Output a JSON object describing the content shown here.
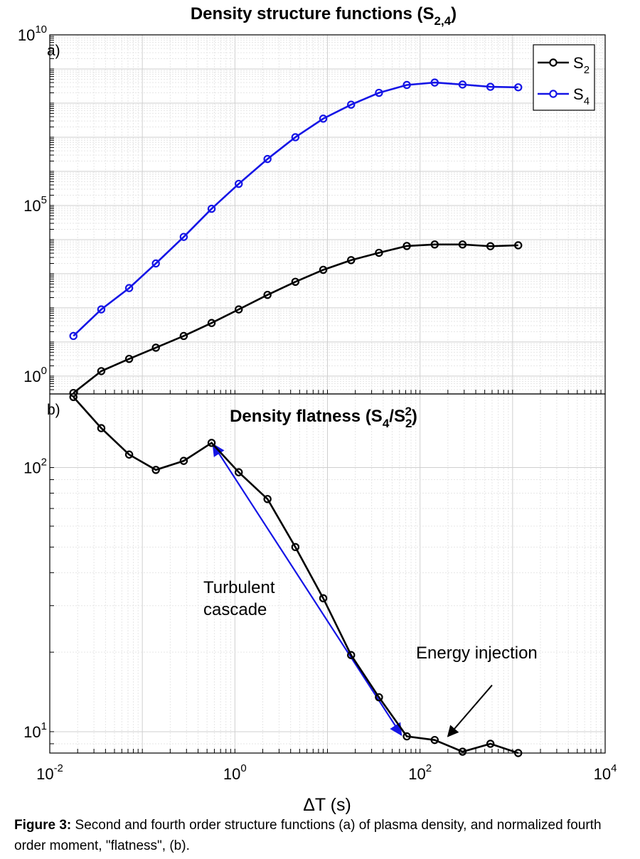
{
  "figure": {
    "caption_label": "Figure 3:",
    "caption_text": "Second and fourth order structure functions (a) of plasma density, and normalized fourth order moment, \"flatness\", (b)."
  },
  "chart_data": [
    {
      "type": "line",
      "panel_label": "a)",
      "title_parts": {
        "main": "Density structure functions (S",
        "sub": "2,4",
        "end": ")"
      },
      "xlabel": "ΔT (s)",
      "ylabel": "",
      "xscale": "log",
      "yscale": "log",
      "xlim": [
        0.01,
        10000
      ],
      "ylim": [
        0.3,
        10000000000
      ],
      "yticks": [
        {
          "base": "10",
          "exp": "10"
        },
        {
          "base": "10",
          "exp": "5"
        },
        {
          "base": "10",
          "exp": "0"
        }
      ],
      "xticks": [],
      "grid": true,
      "legend_position": "top-right",
      "series": [
        {
          "name": "S",
          "name_sub": "2",
          "color": "#000000",
          "x": [
            0.018,
            0.036,
            0.072,
            0.14,
            0.28,
            0.56,
            1.1,
            2.25,
            4.5,
            9,
            18,
            36,
            72,
            144,
            288,
            576,
            1150
          ],
          "y": [
            0.32,
            1.4,
            3.2,
            6.8,
            15,
            36,
            90,
            240,
            580,
            1300,
            2500,
            4100,
            6500,
            7200,
            7200,
            6400,
            6800
          ]
        },
        {
          "name": "S",
          "name_sub": "4",
          "color": "#1515e6",
          "x": [
            0.018,
            0.036,
            0.072,
            0.14,
            0.28,
            0.56,
            1.1,
            2.25,
            4.5,
            9,
            18,
            36,
            72,
            144,
            288,
            576,
            1150
          ],
          "y": [
            15,
            90,
            380,
            2000,
            12000,
            80000,
            430000,
            2300000,
            10000000,
            35000000,
            90000000,
            200000000,
            340000000,
            400000000,
            350000000,
            300000000,
            290000000
          ]
        }
      ]
    },
    {
      "type": "line",
      "panel_label": "b)",
      "title_parts": {
        "main": "Density flatness (S",
        "sub1": "4",
        "mid": "/S",
        "sub2": "2",
        "sup2": "2",
        "end": ")"
      },
      "xlabel": "ΔT (s)",
      "ylabel": "",
      "xscale": "log",
      "yscale": "log",
      "xlim": [
        0.01,
        10000
      ],
      "ylim": [
        8.3,
        190
      ],
      "yticks": [
        {
          "base": "10",
          "exp": "2"
        },
        {
          "base": "10",
          "exp": "1"
        }
      ],
      "xticks": [
        {
          "base": "10",
          "exp": "-2"
        },
        {
          "base": "10",
          "exp": "0"
        },
        {
          "base": "10",
          "exp": "2"
        },
        {
          "base": "10",
          "exp": "4"
        }
      ],
      "grid": true,
      "series": [
        {
          "name": "",
          "color": "#000000",
          "x": [
            0.018,
            0.036,
            0.072,
            0.14,
            0.28,
            0.56,
            1.1,
            2.25,
            4.5,
            9,
            18,
            36,
            72,
            144,
            288,
            576,
            1150
          ],
          "y": [
            185,
            141,
            112,
            98,
            106,
            124,
            96,
            76,
            50,
            32,
            19.5,
            13.5,
            9.6,
            9.3,
            8.4,
            9.0,
            8.3
          ]
        }
      ],
      "annotations": [
        {
          "text_lines": [
            "Turbulent",
            "cascade"
          ],
          "arrow_color": "#1515e6",
          "arrow_from": [
            65,
            9.6
          ],
          "arrow_to": [
            0.56,
            124
          ]
        },
        {
          "text_lines": [
            "Energy injection"
          ],
          "arrow_color": "#000000",
          "arrow_from": [
            600,
            15
          ],
          "arrow_to": [
            200,
            9.6
          ]
        }
      ]
    }
  ]
}
